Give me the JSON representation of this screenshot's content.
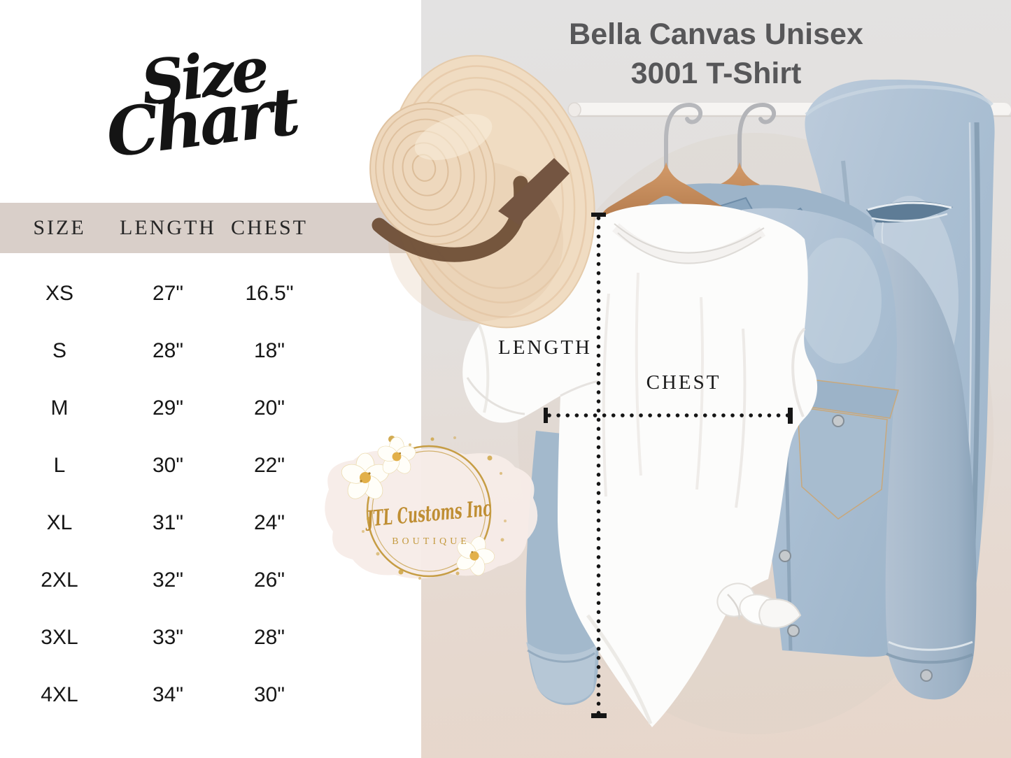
{
  "left_panel": {
    "title_word1": "Size",
    "title_word2": "Chart"
  },
  "chart_data": {
    "type": "table",
    "title": "Bella Canvas Unisex 3001 T-Shirt Size Chart",
    "columns": [
      "SIZE",
      "LENGTH",
      "CHEST"
    ],
    "rows": [
      [
        "XS",
        "27\"",
        "16.5\""
      ],
      [
        "S",
        "28\"",
        "18\""
      ],
      [
        "M",
        "29\"",
        "20\""
      ],
      [
        "L",
        "30\"",
        "22\""
      ],
      [
        "XL",
        "31\"",
        "24\""
      ],
      [
        "2XL",
        "32\"",
        "26\""
      ],
      [
        "3XL",
        "33\"",
        "28\""
      ],
      [
        "4XL",
        "34\"",
        "30\""
      ]
    ],
    "units": "inches"
  },
  "photo": {
    "title_line1": "Bella Canvas Unisex",
    "title_line2": "3001 T-Shirt",
    "length_label": "LENGTH",
    "chest_label": "CHEST"
  },
  "logo": {
    "brand": "JTL Customs Inc",
    "boutique": "BOUTIQUE"
  },
  "colors": {
    "header_band": "#d9cfc9",
    "title_gray": "#575759",
    "gold": "#c49a3f",
    "denim": "#aec2d4",
    "wood": "#c28c5e",
    "straw": "#f0dcc2",
    "measure_line": "#151515"
  }
}
